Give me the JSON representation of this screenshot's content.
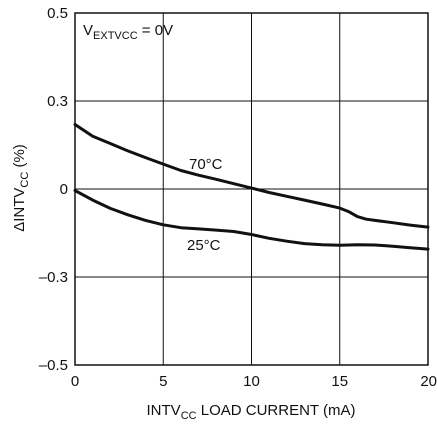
{
  "chart_data": {
    "type": "line",
    "title": "",
    "xlabel": {
      "main": "INTV",
      "sub": "CC",
      "rest": " LOAD CURRENT (mA)"
    },
    "ylabel": {
      "main": "ΔINTV",
      "sub": "CC",
      "rest": " (%)"
    },
    "xlim": [
      0,
      20
    ],
    "ylim": [
      -0.5,
      0.5
    ],
    "x_ticks": [
      0,
      5,
      10,
      15,
      20
    ],
    "x_tick_labels": [
      "0",
      "5",
      "10",
      "15",
      "20"
    ],
    "y_ticks": [
      0.5,
      0.3,
      0,
      -0.3,
      -0.5
    ],
    "y_tick_labels": [
      "0.5",
      "0.3",
      "0",
      "–0.3",
      "–0.5"
    ],
    "grid": true,
    "condition": {
      "main": "V",
      "sub": "EXTVCC",
      "rest": " = 0V"
    },
    "series": [
      {
        "name": "70°C",
        "x": [
          0,
          1,
          2,
          3,
          4,
          5,
          6,
          7,
          8,
          9,
          10,
          11,
          12,
          13,
          14,
          15,
          15.5,
          16,
          16.5,
          17,
          18,
          19,
          20
        ],
        "y": [
          0.22,
          0.18,
          0.155,
          0.13,
          0.107,
          0.085,
          0.063,
          0.047,
          0.033,
          0.018,
          0.003,
          -0.012,
          -0.025,
          -0.038,
          -0.051,
          -0.065,
          -0.077,
          -0.094,
          -0.103,
          -0.107,
          -0.115,
          -0.123,
          -0.13
        ]
      },
      {
        "name": "25°C",
        "x": [
          0,
          1,
          2,
          3,
          4,
          5,
          6,
          7,
          8,
          9,
          10,
          11,
          12,
          13,
          14,
          15,
          16,
          17,
          18,
          19,
          20
        ],
        "y": [
          -0.005,
          -0.038,
          -0.066,
          -0.088,
          -0.107,
          -0.122,
          -0.132,
          -0.136,
          -0.14,
          -0.145,
          -0.155,
          -0.168,
          -0.178,
          -0.186,
          -0.19,
          -0.192,
          -0.19,
          -0.191,
          -0.195,
          -0.2,
          -0.205
        ]
      }
    ]
  }
}
